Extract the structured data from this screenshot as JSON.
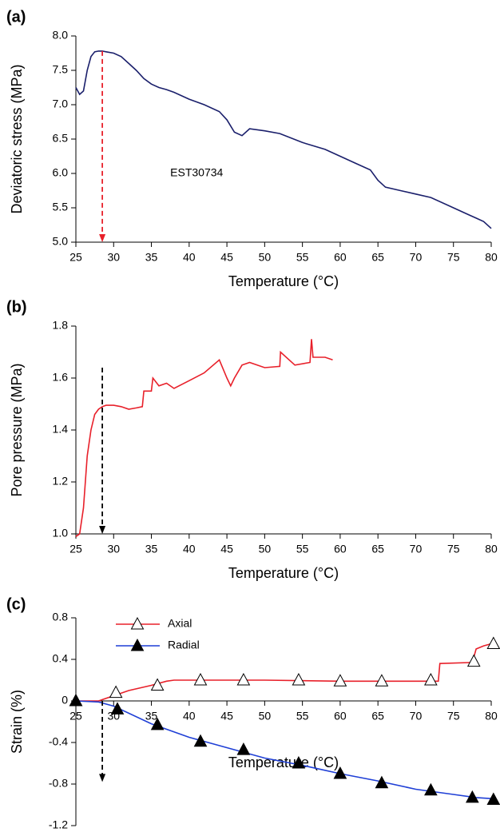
{
  "chart_data": [
    {
      "type": "line",
      "panel_label": "(a)",
      "xlabel": "Temperature (°C)",
      "ylabel": "Deviatoric stress (MPa)",
      "xlim": [
        25,
        80
      ],
      "xticks": [
        25,
        30,
        35,
        40,
        45,
        50,
        55,
        60,
        65,
        70,
        75,
        80
      ],
      "ylim": [
        5,
        8
      ],
      "yticks": [
        {
          "value": 5,
          "label": "5.0"
        },
        {
          "value": 5.5,
          "label": "5.5"
        },
        {
          "value": 6,
          "label": "6.0"
        },
        {
          "value": 6.5,
          "label": "6.5"
        },
        {
          "value": 7,
          "label": "7.0"
        },
        {
          "value": 7.5,
          "label": "7.5"
        },
        {
          "value": 8,
          "label": "8.0"
        }
      ],
      "series": [
        {
          "name": "EST30734",
          "color": "#1a1f6b",
          "x": [
            25,
            25.5,
            26,
            26.5,
            27,
            27.5,
            28,
            28.5,
            29,
            30,
            31,
            32,
            33,
            34,
            35,
            36,
            37,
            38,
            40,
            42,
            44,
            45,
            46,
            47,
            48,
            50,
            52,
            55,
            58,
            60,
            62,
            64,
            65,
            66,
            68,
            70,
            72,
            75,
            77,
            78,
            79,
            80
          ],
          "values": [
            7.25,
            7.15,
            7.2,
            7.5,
            7.7,
            7.77,
            7.78,
            7.78,
            7.77,
            7.75,
            7.7,
            7.6,
            7.5,
            7.38,
            7.3,
            7.25,
            7.22,
            7.18,
            7.08,
            7.0,
            6.9,
            6.78,
            6.6,
            6.55,
            6.65,
            6.62,
            6.58,
            6.45,
            6.35,
            6.25,
            6.15,
            6.05,
            5.9,
            5.8,
            5.75,
            5.7,
            5.65,
            5.5,
            5.4,
            5.35,
            5.3,
            5.2
          ]
        }
      ],
      "annotation": {
        "text": "EST30734",
        "x": 41,
        "y": 6.0
      },
      "arrow": {
        "x": 28.5,
        "from": 7.78,
        "to": 5,
        "color": "#e8202a"
      }
    },
    {
      "type": "line",
      "panel_label": "(b)",
      "xlabel": "Temperature (°C)",
      "ylabel": "Pore pressure (MPa)",
      "xlim": [
        25,
        80
      ],
      "xticks": [
        25,
        30,
        35,
        40,
        45,
        50,
        55,
        60,
        65,
        70,
        75,
        80
      ],
      "ylim": [
        1,
        1.8
      ],
      "yticks": [
        {
          "value": 1,
          "label": "1.0"
        },
        {
          "value": 1.2,
          "label": "1.2"
        },
        {
          "value": 1.4,
          "label": "1.4"
        },
        {
          "value": 1.6,
          "label": "1.6"
        },
        {
          "value": 1.8,
          "label": "1.8"
        }
      ],
      "series": [
        {
          "name": "Pore pressure",
          "color": "#e8202a",
          "x": [
            25,
            25.5,
            26,
            26.5,
            27,
            27.5,
            28,
            28.5,
            29,
            30,
            31,
            32,
            33,
            33.8,
            34,
            35,
            35.2,
            36,
            37,
            38,
            40,
            42,
            44,
            45,
            45.5,
            46,
            47,
            48,
            50,
            52,
            52.1,
            54,
            56,
            56.2,
            56.4,
            58,
            59
          ],
          "values": [
            0.99,
            1.0,
            1.1,
            1.3,
            1.4,
            1.46,
            1.48,
            1.49,
            1.495,
            1.495,
            1.49,
            1.48,
            1.485,
            1.49,
            1.55,
            1.55,
            1.6,
            1.57,
            1.58,
            1.56,
            1.59,
            1.62,
            1.67,
            1.6,
            1.57,
            1.6,
            1.65,
            1.66,
            1.64,
            1.645,
            1.7,
            1.65,
            1.66,
            1.75,
            1.68,
            1.68,
            1.67
          ]
        }
      ],
      "arrow": {
        "x": 28.5,
        "from": 1.64,
        "to": 1.0,
        "color": "#000000"
      }
    },
    {
      "type": "line",
      "panel_label": "(c)",
      "xlabel": "Temperature (°C)",
      "ylabel": "Strain (%)",
      "xlim": [
        25,
        80
      ],
      "xticks": [
        25,
        30,
        35,
        40,
        45,
        50,
        55,
        60,
        65,
        70,
        75,
        80
      ],
      "ylim": [
        -1.2,
        0.8
      ],
      "yticks": [
        -1.2,
        -0.8,
        -0.4,
        0,
        0.4,
        0.8
      ],
      "legend": "upper left",
      "series": [
        {
          "name": "Axial",
          "color": "#e8202a",
          "marker_fill": "#ffffff",
          "x": [
            25,
            28,
            30,
            32,
            35,
            37,
            38,
            40,
            50,
            60,
            70,
            73,
            73.2,
            77.5,
            78,
            79,
            80
          ],
          "values": [
            0,
            0,
            0.05,
            0.1,
            0.15,
            0.19,
            0.2,
            0.2,
            0.2,
            0.19,
            0.19,
            0.19,
            0.36,
            0.37,
            0.5,
            0.53,
            0.55
          ],
          "marker_x": [
            25,
            30.3,
            35.8,
            41.5,
            47.2,
            54.5,
            60,
            65.5,
            72,
            77.7,
            80.3
          ],
          "marker_values": [
            0,
            0.08,
            0.15,
            0.2,
            0.2,
            0.2,
            0.19,
            0.19,
            0.2,
            0.38,
            0.55
          ]
        },
        {
          "name": "Radial",
          "color": "#1f3fd6",
          "marker_fill": "#000000",
          "x": [
            25,
            28,
            30,
            35,
            40,
            45,
            50,
            55,
            60,
            65,
            70,
            75,
            78,
            80
          ],
          "values": [
            0,
            -0.01,
            -0.05,
            -0.22,
            -0.35,
            -0.45,
            -0.55,
            -0.62,
            -0.7,
            -0.77,
            -0.85,
            -0.9,
            -0.93,
            -0.94
          ],
          "marker_x": [
            25,
            30.5,
            35.8,
            41.5,
            47.2,
            54.5,
            60,
            65.5,
            72,
            77.5,
            80.3
          ],
          "marker_values": [
            0,
            -0.08,
            -0.23,
            -0.39,
            -0.47,
            -0.6,
            -0.7,
            -0.79,
            -0.86,
            -0.93,
            -0.95
          ]
        }
      ],
      "arrow": {
        "x": 28.5,
        "from": 0,
        "to": -0.78,
        "color": "#000000"
      }
    }
  ]
}
